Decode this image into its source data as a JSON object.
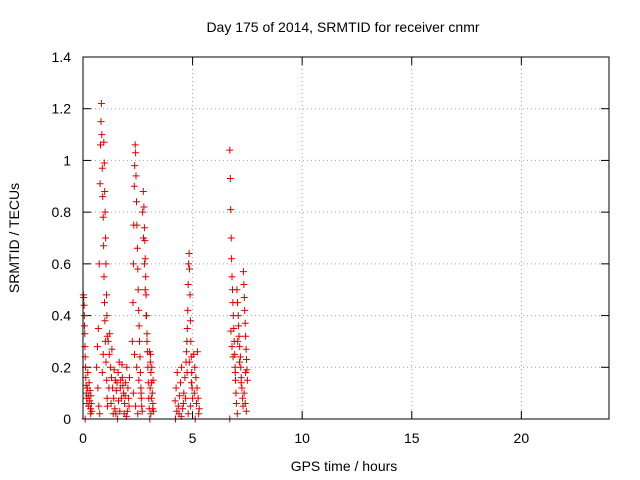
{
  "chart_data": {
    "type": "scatter",
    "title": "Day 175 of 2014, SRMTID for receiver cnmr",
    "xlabel": "GPS time / hours",
    "ylabel": "SRMTID / TECUs",
    "xlim": [
      0,
      24
    ],
    "ylim": [
      0,
      1.4
    ],
    "xticks": [
      0,
      5,
      10,
      15,
      20
    ],
    "yticks": [
      0,
      0.2,
      0.4,
      0.6,
      0.8,
      1,
      1.2,
      1.4
    ],
    "ytick_labels": [
      "0",
      "0.2",
      "0.4",
      "0.6",
      "0.8",
      "1",
      "1.2",
      "1.4"
    ],
    "grid": true,
    "marker": "+",
    "color": "#dd0000",
    "series": [
      {
        "name": "",
        "points": [
          [
            0.02,
            0.48
          ],
          [
            0.03,
            0.47
          ],
          [
            0.05,
            0.44
          ],
          [
            0.06,
            0.4
          ],
          [
            0.07,
            0.36
          ],
          [
            0.08,
            0.33
          ],
          [
            0.09,
            0.28
          ],
          [
            0.1,
            0.24
          ],
          [
            0.12,
            0.2
          ],
          [
            0.13,
            0.16
          ],
          [
            0.14,
            0.13
          ],
          [
            0.15,
            0.1
          ],
          [
            0.17,
            0.08
          ],
          [
            0.18,
            0.06
          ],
          [
            0.2,
            0.12
          ],
          [
            0.22,
            0.18
          ],
          [
            0.24,
            0.09
          ],
          [
            0.26,
            0.05
          ],
          [
            0.28,
            0.14
          ],
          [
            0.3,
            0.07
          ],
          [
            0.32,
            0.11
          ],
          [
            0.34,
            0.04
          ],
          [
            0.36,
            0.09
          ],
          [
            0.38,
            0.06
          ],
          [
            0.4,
            0.03
          ],
          [
            0.1,
            0.0
          ],
          [
            0.35,
            0.02
          ],
          [
            0.62,
            0.2
          ],
          [
            0.66,
            0.28
          ],
          [
            0.7,
            0.35
          ],
          [
            0.74,
            0.6
          ],
          [
            0.78,
            0.91
          ],
          [
            0.8,
            1.06
          ],
          [
            0.82,
            1.15
          ],
          [
            0.84,
            1.22
          ],
          [
            0.86,
            1.1
          ],
          [
            0.88,
            0.97
          ],
          [
            0.9,
            0.86
          ],
          [
            0.92,
            0.78
          ],
          [
            0.94,
            0.67
          ],
          [
            0.96,
            0.55
          ],
          [
            0.98,
            0.45
          ],
          [
            1.0,
            0.38
          ],
          [
            1.02,
            0.3
          ],
          [
            1.05,
            0.22
          ],
          [
            1.08,
            0.15
          ],
          [
            1.1,
            0.08
          ],
          [
            1.12,
            0.05
          ],
          [
            0.95,
            1.07
          ],
          [
            0.97,
            0.99
          ],
          [
            0.99,
            0.88
          ],
          [
            1.01,
            0.8
          ],
          [
            1.03,
            0.7
          ],
          [
            1.05,
            0.6
          ],
          [
            1.07,
            0.48
          ],
          [
            1.09,
            0.4
          ],
          [
            1.11,
            0.32
          ],
          [
            0.72,
            0.05
          ],
          [
            0.76,
            0.02
          ],
          [
            0.68,
            0.12
          ],
          [
            0.88,
            0.18
          ],
          [
            0.92,
            0.25
          ],
          [
            1.15,
            0.3
          ],
          [
            1.2,
            0.25
          ],
          [
            1.25,
            0.2
          ],
          [
            1.3,
            0.16
          ],
          [
            1.35,
            0.12
          ],
          [
            1.4,
            0.08
          ],
          [
            1.45,
            0.04
          ],
          [
            1.5,
            0.02
          ],
          [
            1.55,
            0.14
          ],
          [
            1.6,
            0.18
          ],
          [
            1.65,
            0.22
          ],
          [
            1.7,
            0.12
          ],
          [
            1.75,
            0.08
          ],
          [
            1.8,
            0.16
          ],
          [
            1.85,
            0.1
          ],
          [
            1.9,
            0.06
          ],
          [
            1.95,
            0.14
          ],
          [
            2.0,
            0.2
          ],
          [
            2.05,
            0.12
          ],
          [
            2.1,
            0.05
          ],
          [
            1.22,
            0.33
          ],
          [
            1.32,
            0.27
          ],
          [
            1.42,
            0.19
          ],
          [
            1.52,
            0.11
          ],
          [
            1.62,
            0.07
          ],
          [
            1.72,
            0.15
          ],
          [
            1.82,
            0.13
          ],
          [
            1.92,
            0.09
          ],
          [
            2.02,
            0.03
          ],
          [
            1.28,
            0.06
          ],
          [
            1.38,
            0.02
          ],
          [
            1.58,
            0.0
          ],
          [
            1.68,
            0.03
          ],
          [
            1.88,
            0.02
          ],
          [
            1.98,
            0.01
          ],
          [
            2.08,
            0.08
          ],
          [
            1.18,
            0.12
          ],
          [
            1.48,
            0.15
          ],
          [
            1.78,
            0.21
          ],
          [
            2.12,
            0.16
          ],
          [
            2.25,
            0.3
          ],
          [
            2.28,
            0.45
          ],
          [
            2.3,
            0.6
          ],
          [
            2.32,
            0.75
          ],
          [
            2.34,
            0.9
          ],
          [
            2.36,
            0.98
          ],
          [
            2.38,
            1.06
          ],
          [
            2.4,
            1.03
          ],
          [
            2.42,
            0.94
          ],
          [
            2.44,
            0.84
          ],
          [
            2.46,
            0.75
          ],
          [
            2.48,
            0.66
          ],
          [
            2.5,
            0.58
          ],
          [
            2.52,
            0.5
          ],
          [
            2.54,
            0.42
          ],
          [
            2.56,
            0.36
          ],
          [
            2.58,
            0.3
          ],
          [
            2.6,
            0.24
          ],
          [
            2.62,
            0.18
          ],
          [
            2.64,
            0.12
          ],
          [
            2.66,
            0.08
          ],
          [
            2.68,
            0.05
          ],
          [
            2.35,
            0.25
          ],
          [
            2.45,
            0.2
          ],
          [
            2.55,
            0.15
          ],
          [
            2.65,
            0.1
          ],
          [
            2.3,
            0.1
          ],
          [
            2.4,
            0.05
          ],
          [
            2.5,
            0.02
          ],
          [
            2.7,
            0.03
          ],
          [
            2.72,
            0.8
          ],
          [
            2.75,
            0.88
          ],
          [
            2.78,
            0.82
          ],
          [
            2.8,
            0.74
          ],
          [
            2.82,
            0.69
          ],
          [
            2.84,
            0.62
          ],
          [
            2.86,
            0.55
          ],
          [
            2.88,
            0.48
          ],
          [
            2.9,
            0.4
          ],
          [
            2.92,
            0.33
          ],
          [
            2.94,
            0.26
          ],
          [
            2.96,
            0.2
          ],
          [
            2.98,
            0.14
          ],
          [
            3.0,
            0.08
          ],
          [
            3.02,
            0.04
          ],
          [
            2.76,
            0.7
          ],
          [
            2.8,
            0.6
          ],
          [
            2.84,
            0.5
          ],
          [
            2.88,
            0.4
          ],
          [
            2.92,
            0.3
          ],
          [
            3.04,
            0.26
          ],
          [
            3.07,
            0.22
          ],
          [
            3.1,
            0.18
          ],
          [
            3.13,
            0.14
          ],
          [
            3.16,
            0.1
          ],
          [
            3.19,
            0.06
          ],
          [
            3.22,
            0.03
          ],
          [
            3.06,
            0.12
          ],
          [
            3.12,
            0.08
          ],
          [
            3.18,
            0.04
          ],
          [
            3.08,
            0.25
          ],
          [
            3.14,
            0.2
          ],
          [
            3.2,
            0.15
          ],
          [
            3.1,
            0.02
          ],
          [
            3.05,
            0.0
          ],
          [
            4.2,
            0.07
          ],
          [
            4.25,
            0.12
          ],
          [
            4.3,
            0.18
          ],
          [
            4.35,
            0.05
          ],
          [
            4.4,
            0.09
          ],
          [
            4.45,
            0.14
          ],
          [
            4.5,
            0.2
          ],
          [
            4.55,
            0.04
          ],
          [
            4.6,
            0.1
          ],
          [
            4.65,
            0.16
          ],
          [
            4.7,
            0.22
          ],
          [
            4.28,
            0.03
          ],
          [
            4.38,
            0.02
          ],
          [
            4.48,
            0.01
          ],
          [
            4.58,
            0.06
          ],
          [
            4.68,
            0.08
          ],
          [
            4.22,
            0.0
          ],
          [
            4.72,
            0.26
          ],
          [
            4.74,
            0.3
          ],
          [
            4.76,
            0.35
          ],
          [
            4.78,
            0.42
          ],
          [
            4.8,
            0.52
          ],
          [
            4.82,
            0.6
          ],
          [
            4.84,
            0.64
          ],
          [
            4.86,
            0.58
          ],
          [
            4.88,
            0.48
          ],
          [
            4.9,
            0.38
          ],
          [
            4.92,
            0.3
          ],
          [
            4.94,
            0.24
          ],
          [
            4.96,
            0.18
          ],
          [
            4.98,
            0.12
          ],
          [
            5.0,
            0.08
          ],
          [
            4.75,
            0.18
          ],
          [
            4.85,
            0.22
          ],
          [
            4.95,
            0.14
          ],
          [
            4.8,
            0.02
          ],
          [
            4.9,
            0.05
          ],
          [
            5.05,
            0.25
          ],
          [
            5.1,
            0.2
          ],
          [
            5.15,
            0.16
          ],
          [
            5.2,
            0.12
          ],
          [
            5.25,
            0.08
          ],
          [
            5.3,
            0.04
          ],
          [
            5.08,
            0.1
          ],
          [
            5.18,
            0.06
          ],
          [
            5.28,
            0.02
          ],
          [
            5.12,
            0.0
          ],
          [
            5.22,
            0.26
          ],
          [
            6.7,
            1.04
          ],
          [
            6.72,
            0.93
          ],
          [
            6.74,
            0.81
          ],
          [
            6.76,
            0.7
          ],
          [
            6.78,
            0.62
          ],
          [
            6.8,
            0.55
          ],
          [
            6.82,
            0.5
          ],
          [
            6.84,
            0.45
          ],
          [
            6.86,
            0.4
          ],
          [
            6.88,
            0.35
          ],
          [
            6.9,
            0.3
          ],
          [
            6.92,
            0.25
          ],
          [
            6.94,
            0.2
          ],
          [
            6.96,
            0.15
          ],
          [
            6.98,
            0.1
          ],
          [
            7.0,
            0.06
          ],
          [
            6.75,
            0.34
          ],
          [
            6.8,
            0.28
          ],
          [
            6.85,
            0.24
          ],
          [
            6.95,
            0.18
          ],
          [
            6.7,
            0.0
          ],
          [
            7.02,
            0.5
          ],
          [
            7.05,
            0.45
          ],
          [
            7.08,
            0.4
          ],
          [
            7.1,
            0.36
          ],
          [
            7.12,
            0.32
          ],
          [
            7.15,
            0.28
          ],
          [
            7.18,
            0.24
          ],
          [
            7.2,
            0.2
          ],
          [
            7.22,
            0.16
          ],
          [
            7.25,
            0.12
          ],
          [
            7.28,
            0.08
          ],
          [
            7.3,
            0.05
          ],
          [
            7.06,
            0.3
          ],
          [
            7.14,
            0.22
          ],
          [
            7.22,
            0.14
          ],
          [
            7.04,
            0.02
          ],
          [
            7.32,
            0.57
          ],
          [
            7.34,
            0.52
          ],
          [
            7.36,
            0.47
          ],
          [
            7.38,
            0.42
          ],
          [
            7.4,
            0.37
          ],
          [
            7.42,
            0.32
          ],
          [
            7.44,
            0.27
          ],
          [
            7.46,
            0.23
          ],
          [
            7.48,
            0.19
          ],
          [
            7.5,
            0.15
          ],
          [
            7.35,
            0.1
          ],
          [
            7.4,
            0.06
          ],
          [
            7.45,
            0.03
          ],
          [
            7.42,
            0.18
          ]
        ]
      }
    ]
  }
}
